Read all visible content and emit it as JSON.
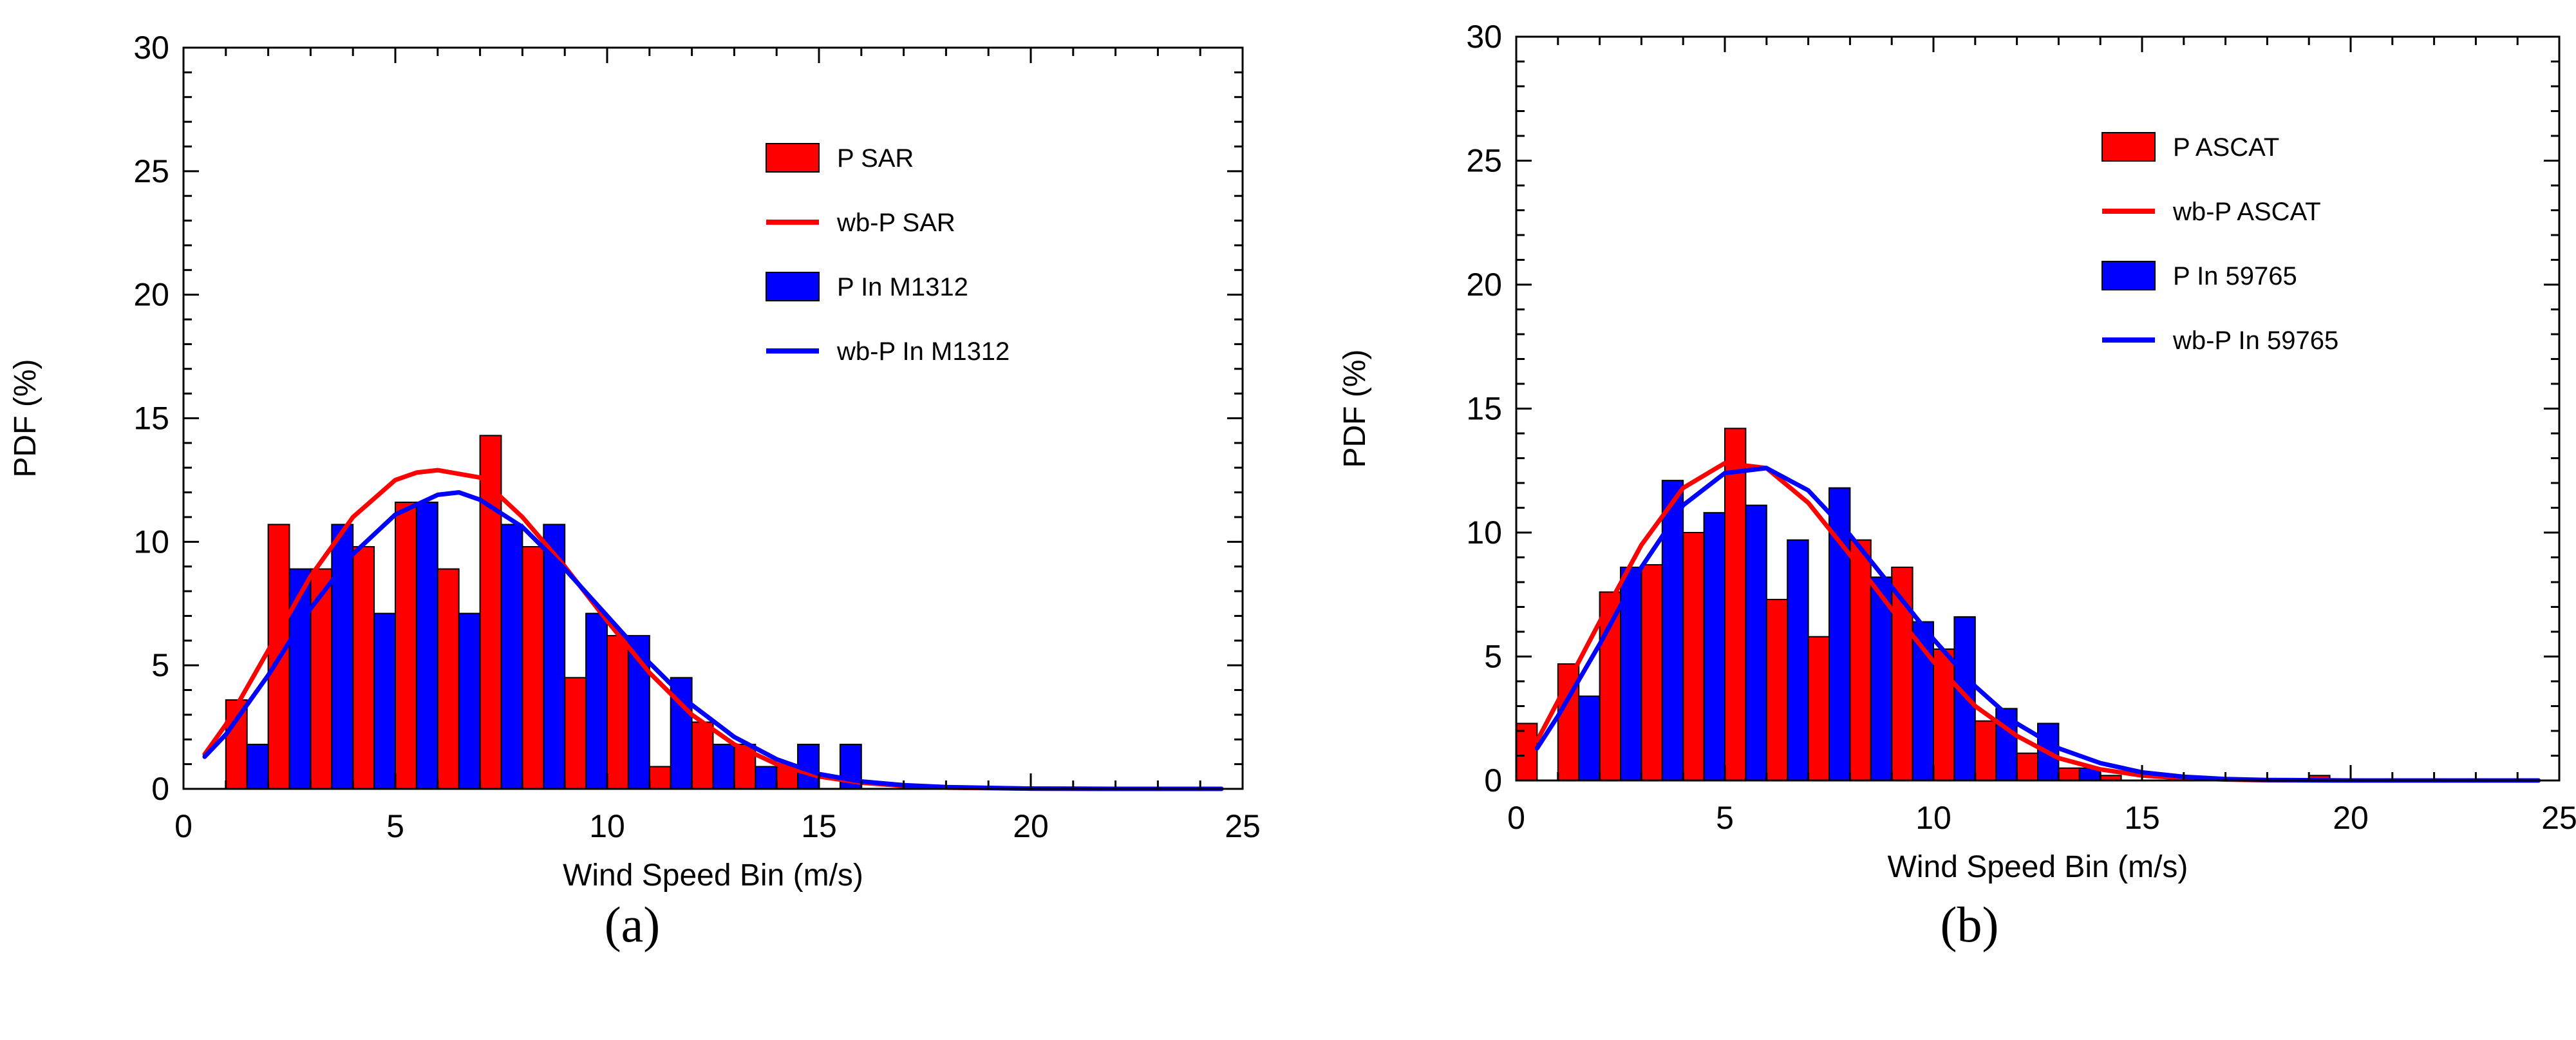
{
  "figure": {
    "panel_labels": [
      "(a)",
      "(b)"
    ]
  },
  "chart_data": [
    {
      "type": "bar",
      "panel": "(a)",
      "xlabel": "Wind Speed Bin (m/s)",
      "ylabel": "PDF (%)",
      "xlim": [
        0,
        25
      ],
      "ylim": [
        0,
        30
      ],
      "x_ticks": [
        0,
        5,
        10,
        15,
        20,
        25
      ],
      "y_ticks": [
        0,
        5,
        10,
        15,
        20,
        25,
        30
      ],
      "legend_position": "top-right",
      "colors": {
        "red": "#ff0000",
        "blue": "#0000ff"
      },
      "bars": [
        {
          "name": "P SAR",
          "color": "#ff0000",
          "x": [
            0.5,
            1.5,
            2.5,
            3.5,
            4.5,
            5.5,
            6.5,
            7.5,
            8.5,
            9.5,
            10.5,
            11.5,
            12.5,
            13.5,
            14.5,
            15.5
          ],
          "values": [
            0,
            3.6,
            10.7,
            8.9,
            9.8,
            11.6,
            8.9,
            14.3,
            9.8,
            4.5,
            6.2,
            0.9,
            2.7,
            1.8,
            0.9,
            0
          ]
        },
        {
          "name": "P In M1312",
          "color": "#0000ff",
          "x": [
            0.5,
            1.5,
            2.5,
            3.5,
            4.5,
            5.5,
            6.5,
            7.5,
            8.5,
            9.5,
            10.5,
            11.5,
            12.5,
            13.5,
            14.5,
            15.5
          ],
          "values": [
            0,
            1.8,
            8.9,
            10.7,
            7.1,
            11.6,
            7.1,
            10.7,
            10.7,
            7.1,
            6.2,
            4.5,
            1.8,
            0.9,
            1.8,
            1.8
          ]
        }
      ],
      "lines": [
        {
          "name": "wb-P SAR",
          "color": "#ff0000",
          "x": [
            0.5,
            1,
            2,
            3,
            4,
            5,
            5.5,
            6,
            7,
            8,
            9,
            10,
            11,
            12,
            13,
            14,
            15,
            16,
            17,
            18,
            20,
            22,
            24.5
          ],
          "y": [
            1.4,
            2.6,
            5.6,
            8.6,
            11.0,
            12.5,
            12.8,
            12.9,
            12.6,
            11.0,
            9.0,
            6.8,
            4.7,
            3.0,
            1.8,
            1.0,
            0.5,
            0.25,
            0.12,
            0.05,
            0.01,
            0,
            0
          ]
        },
        {
          "name": "wb-P In M1312",
          "color": "#0000ff",
          "x": [
            0.5,
            1,
            2,
            3,
            4,
            5,
            6,
            6.5,
            7,
            8,
            9,
            10,
            11,
            12,
            13,
            14,
            15,
            16,
            17,
            18,
            20,
            22,
            24.5
          ],
          "y": [
            1.3,
            2.2,
            4.6,
            7.3,
            9.5,
            11.1,
            11.9,
            12.0,
            11.7,
            10.6,
            8.9,
            7.0,
            5.1,
            3.4,
            2.1,
            1.2,
            0.6,
            0.3,
            0.15,
            0.07,
            0.01,
            0,
            0
          ]
        }
      ],
      "legend": [
        "P SAR",
        "wb-P SAR",
        "P In M1312",
        "wb-P In M1312"
      ]
    },
    {
      "type": "bar",
      "panel": "(b)",
      "xlabel": "Wind Speed Bin (m/s)",
      "ylabel": "PDF (%)",
      "xlim": [
        0,
        25
      ],
      "ylim": [
        0,
        30
      ],
      "x_ticks": [
        0,
        5,
        10,
        15,
        20,
        25
      ],
      "y_ticks": [
        0,
        5,
        10,
        15,
        20,
        25,
        30
      ],
      "legend_position": "top-right",
      "colors": {
        "red": "#ff0000",
        "blue": "#0000ff"
      },
      "bars": [
        {
          "name": "P ASCAT",
          "color": "#ff0000",
          "x": [
            0.5,
            1.5,
            2.5,
            3.5,
            4.5,
            5.5,
            6.5,
            7.5,
            8.5,
            9.5,
            10.5,
            11.5,
            12.5,
            13.5,
            14.5,
            15.5,
            16.5,
            17.5,
            18.5,
            19.5
          ],
          "values": [
            2.3,
            4.7,
            7.6,
            8.7,
            10.0,
            14.2,
            7.3,
            5.8,
            9.7,
            8.6,
            5.3,
            2.4,
            1.1,
            0.5,
            0.2,
            0,
            0,
            0,
            0,
            0.2
          ]
        },
        {
          "name": "P In 59765",
          "color": "#0000ff",
          "x": [
            0.5,
            1.5,
            2.5,
            3.5,
            4.5,
            5.5,
            6.5,
            7.5,
            8.5,
            9.5,
            10.5,
            11.5,
            12.5,
            13.5,
            14.5,
            15.5,
            16.5,
            17.5,
            18.5,
            19.5
          ],
          "values": [
            0,
            3.4,
            8.6,
            12.1,
            10.8,
            11.1,
            9.7,
            11.8,
            8.2,
            6.4,
            6.6,
            2.9,
            2.3,
            0.5,
            0,
            0,
            0,
            0,
            0,
            0
          ]
        }
      ],
      "lines": [
        {
          "name": "wb-P ASCAT",
          "color": "#ff0000",
          "x": [
            0.5,
            1,
            2,
            3,
            4,
            5,
            6,
            7,
            8,
            9,
            10,
            11,
            12,
            13,
            14,
            15,
            16,
            17,
            18,
            20,
            22,
            24.5
          ],
          "y": [
            1.6,
            3.2,
            6.4,
            9.5,
            11.8,
            12.8,
            12.6,
            11.2,
            9.1,
            6.9,
            4.8,
            3.0,
            1.8,
            0.9,
            0.45,
            0.2,
            0.09,
            0.04,
            0.01,
            0,
            0,
            0
          ]
        },
        {
          "name": "wb-P In 59765",
          "color": "#0000ff",
          "x": [
            0.5,
            1,
            2,
            3,
            4,
            5,
            6,
            7,
            8,
            9,
            10,
            11,
            12,
            13,
            14,
            15,
            16,
            17,
            18,
            20,
            22,
            24.5
          ],
          "y": [
            1.3,
            2.6,
            5.5,
            8.6,
            11.1,
            12.4,
            12.6,
            11.7,
            9.9,
            7.8,
            5.7,
            3.8,
            2.3,
            1.3,
            0.7,
            0.33,
            0.15,
            0.06,
            0.02,
            0,
            0,
            0
          ]
        }
      ],
      "legend": [
        "P ASCAT",
        "wb-P ASCAT",
        "P In 59765",
        "wb-P In 59765"
      ]
    }
  ]
}
